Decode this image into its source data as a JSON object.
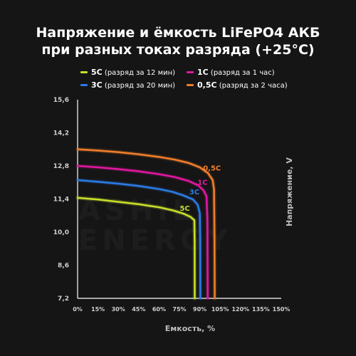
{
  "title_line1": "Напряжение и ёмкость LiFePO4 АКБ",
  "title_line2": "при разных токах разряда (+25°C)",
  "legend": [
    {
      "label": "5C",
      "desc": "(разряд за 12 мин)",
      "color": "#c8df2a"
    },
    {
      "label": "1C",
      "desc": "(разряд за 1 час)",
      "color": "#e0189f"
    },
    {
      "label": "3C",
      "desc": "(разряд за 20 мин)",
      "color": "#2a7be6"
    },
    {
      "label": "0,5C",
      "desc": "(разряд за 2 часа)",
      "color": "#f07d2b"
    }
  ],
  "watermark": "ASHIL ENERGY",
  "chart_data": {
    "type": "line",
    "xlabel": "Емкость, %",
    "ylabel": "Напряжение, V",
    "xlim": [
      0,
      150
    ],
    "ylim": [
      7.2,
      15.6
    ],
    "x_ticks": [
      "0%",
      "15%",
      "30%",
      "45%",
      "60%",
      "75%",
      "90%",
      "105%",
      "120%",
      "135%",
      "150%"
    ],
    "y_ticks": [
      "7,2",
      "8,6",
      "10,0",
      "11,4",
      "12,8",
      "14,2",
      "15,6"
    ],
    "grid": false,
    "series": [
      {
        "name": "5C",
        "color": "#c8df2a",
        "points": [
          [
            0,
            11.45
          ],
          [
            15,
            11.38
          ],
          [
            30,
            11.28
          ],
          [
            45,
            11.18
          ],
          [
            60,
            11.05
          ],
          [
            70,
            10.92
          ],
          [
            78,
            10.78
          ],
          [
            83,
            10.65
          ],
          [
            86,
            10.5
          ],
          [
            86.2,
            9.6
          ],
          [
            86.3,
            7.2
          ]
        ]
      },
      {
        "name": "3C",
        "color": "#2a7be6",
        "points": [
          [
            0,
            12.2
          ],
          [
            15,
            12.13
          ],
          [
            30,
            12.05
          ],
          [
            45,
            11.95
          ],
          [
            60,
            11.82
          ],
          [
            70,
            11.7
          ],
          [
            78,
            11.55
          ],
          [
            85,
            11.38
          ],
          [
            88.5,
            11.15
          ],
          [
            90,
            10.8
          ],
          [
            90.3,
            9.6
          ],
          [
            90.4,
            7.2
          ]
        ]
      },
      {
        "name": "1C",
        "color": "#e0189f",
        "points": [
          [
            0,
            12.8
          ],
          [
            15,
            12.74
          ],
          [
            30,
            12.66
          ],
          [
            45,
            12.57
          ],
          [
            60,
            12.45
          ],
          [
            72,
            12.32
          ],
          [
            82,
            12.16
          ],
          [
            89,
            11.97
          ],
          [
            93,
            11.75
          ],
          [
            95,
            11.5
          ],
          [
            95.6,
            10.5
          ],
          [
            95.8,
            7.2
          ]
        ]
      },
      {
        "name": "0,5C",
        "color": "#f07d2b",
        "points": [
          [
            0,
            13.5
          ],
          [
            15,
            13.45
          ],
          [
            30,
            13.38
          ],
          [
            45,
            13.29
          ],
          [
            60,
            13.18
          ],
          [
            72,
            13.06
          ],
          [
            82,
            12.92
          ],
          [
            90,
            12.74
          ],
          [
            96,
            12.5
          ],
          [
            99.5,
            12.2
          ],
          [
            100.5,
            11.8
          ],
          [
            100.8,
            10
          ],
          [
            101,
            7.2
          ]
        ]
      }
    ],
    "annotations": [
      {
        "text": "5C",
        "x": 79,
        "y": 10.9,
        "color": "#c8df2a"
      },
      {
        "text": "3C",
        "x": 86,
        "y": 11.6,
        "color": "#2a7be6"
      },
      {
        "text": "1C",
        "x": 92,
        "y": 12.0,
        "color": "#e0189f"
      },
      {
        "text": "0,5C",
        "x": 99,
        "y": 12.6,
        "color": "#f07d2b"
      }
    ]
  }
}
